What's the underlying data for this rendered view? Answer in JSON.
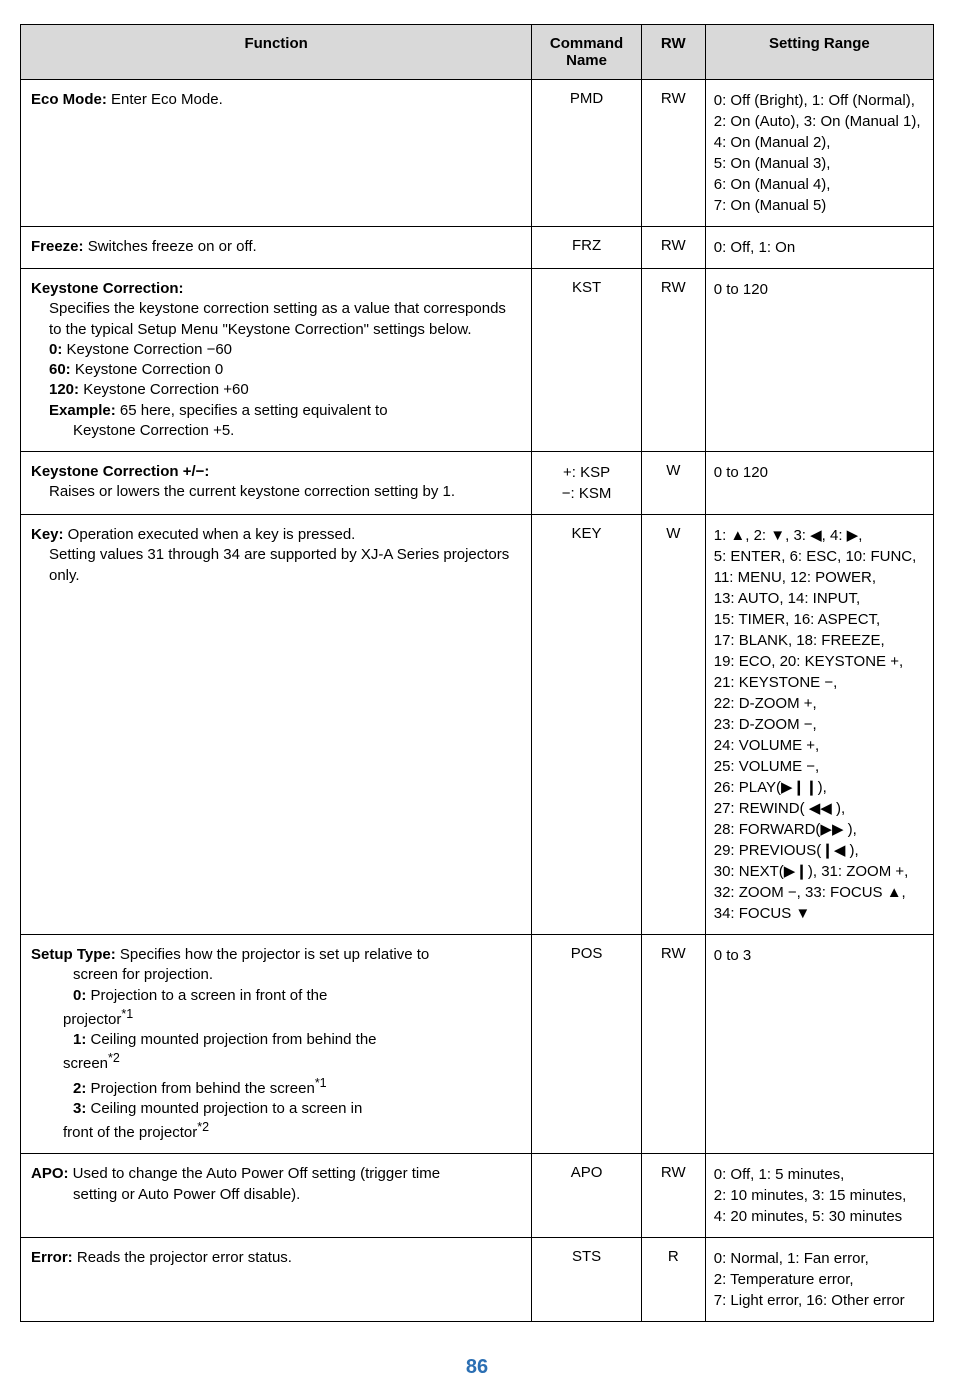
{
  "header": {
    "function": "Function",
    "command": "Command Name",
    "rw": "RW",
    "range": "Setting Range"
  },
  "col_widths": {
    "function": "56%",
    "command": "12%",
    "rw": "7%",
    "range": "25%"
  },
  "rows": [
    {
      "func_lead": "Eco Mode:",
      "func_rest": " Enter Eco Mode.",
      "cmd": "PMD",
      "rw": "RW",
      "range_lines": [
        "0: Off (Bright), 1: Off (Normal),",
        "2: On (Auto), 3: On (Manual 1),",
        "4: On (Manual 2),",
        "5: On (Manual 3),",
        "6: On (Manual 4),",
        "7: On (Manual 5)"
      ],
      "range_align": "top"
    },
    {
      "func_lead": "Freeze:",
      "func_rest": " Switches freeze on or off.",
      "cmd": "FRZ",
      "rw": "RW",
      "range_lines": [
        "0: Off, 1: On"
      ]
    },
    {
      "func_block": true,
      "func_html_parts": [
        {
          "bold": true,
          "text": "Keystone Correction:"
        },
        {
          "indent": 1,
          "text": "Specifies the keystone correction setting as a value that corresponds to the typical Setup Menu \"Keystone Correction\" settings below."
        },
        {
          "indent": 1,
          "bold_prefix": "0:",
          "text": " Keystone Correction −60"
        },
        {
          "indent": 1,
          "bold_prefix": "60:",
          "text": " Keystone Correction 0"
        },
        {
          "indent": 1,
          "bold_prefix": "120:",
          "text": " Keystone Correction +60"
        },
        {
          "indent": 1,
          "bold_prefix": "Example:",
          "text": " 65 here, specifies a setting equivalent to"
        },
        {
          "indent": 2,
          "text": "Keystone Correction +5."
        }
      ],
      "cmd": "KST",
      "rw": "RW",
      "range_lines": [
        "0 to 120"
      ],
      "range_align": "top"
    },
    {
      "func_block": true,
      "func_html_parts": [
        {
          "bold": true,
          "text": "Keystone Correction +/−:"
        },
        {
          "indent": 1,
          "text": "Raises or lowers the current keystone correction setting by 1."
        }
      ],
      "cmd_multi": [
        "+: KSP",
        "−: KSM"
      ],
      "rw": "W",
      "range_lines": [
        "0 to 120"
      ]
    },
    {
      "func_block": true,
      "func_html_parts": [
        {
          "bold_prefix": "Key:",
          "text": " Operation executed when a key is pressed."
        },
        {
          "indent": 1,
          "text": "Setting values 31 through 34 are supported by XJ-A Series projectors only."
        }
      ],
      "cmd": "KEY",
      "rw": "W",
      "range_lines": [
        "1: ▲, 2: ▼, 3: ◀, 4: ▶,",
        "5: ENTER, 6: ESC, 10: FUNC,",
        "11: MENU, 12: POWER,",
        "13: AUTO, 14: INPUT,",
        "15: TIMER, 16: ASPECT,",
        "17: BLANK, 18: FREEZE,",
        "19: ECO, 20: KEYSTONE +,",
        "21: KEYSTONE −,",
        "22: D-ZOOM +,",
        "23: D-ZOOM −,",
        "24: VOLUME +,",
        "25: VOLUME −,",
        "26: PLAY(▶❙❙),",
        "27: REWIND( ◀◀ ),",
        "28: FORWARD(▶▶ ),",
        "29: PREVIOUS(❙◀ ),",
        "30: NEXT(▶❙), 31: ZOOM +,",
        "32: ZOOM −, 33: FOCUS ▲,",
        "34: FOCUS ▼"
      ],
      "range_align": "top"
    },
    {
      "func_block": true,
      "func_html_parts": [
        {
          "bold_prefix": "Setup Type:",
          "text": "  Specifies how the projector is set up relative to"
        },
        {
          "indent": 2,
          "text": "screen for projection."
        },
        {
          "indent": 2,
          "bold_prefix": "0:",
          "text": " Projection to a screen in front of the"
        },
        {
          "indent": 3,
          "text_html": "projector<sup>*1</sup>"
        },
        {
          "indent": 2,
          "bold_prefix": "1:",
          "text": " Ceiling mounted projection from behind the"
        },
        {
          "indent": 3,
          "text_html": "screen<sup>*2</sup>"
        },
        {
          "indent": 2,
          "bold_prefix": "2:",
          "text_html": " Projection from behind the screen<sup>*1</sup>"
        },
        {
          "indent": 2,
          "bold_prefix": "3:",
          "text": " Ceiling mounted projection to a screen in"
        },
        {
          "indent": 3,
          "text_html": "front of the projector<sup>*2</sup>"
        }
      ],
      "cmd": "POS",
      "rw": "RW",
      "range_lines": [
        "0 to 3"
      ],
      "range_align": "top"
    },
    {
      "func_block": true,
      "func_html_parts": [
        {
          "bold_prefix": "APO:",
          "text": "  Used to change the Auto Power Off setting (trigger time"
        },
        {
          "indent": 2,
          "text": "setting or Auto Power Off disable)."
        }
      ],
      "cmd": "APO",
      "rw": "RW",
      "range_lines": [
        "0: Off, 1: 5 minutes,",
        "2: 10 minutes, 3: 15 minutes,",
        "4: 20 minutes, 5: 30 minutes"
      ]
    },
    {
      "func_lead": "Error:",
      "func_rest": "  Reads the projector error status.",
      "cmd": "STS",
      "rw": "R",
      "range_lines": [
        "0: Normal, 1: Fan error,",
        "2: Temperature error,",
        "7: Light error, 16: Other error"
      ]
    }
  ],
  "page_number": "86"
}
